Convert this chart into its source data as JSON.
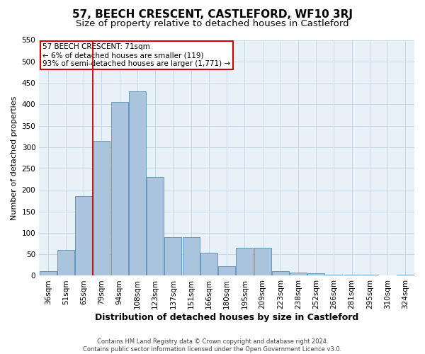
{
  "title": "57, BEECH CRESCENT, CASTLEFORD, WF10 3RJ",
  "subtitle": "Size of property relative to detached houses in Castleford",
  "xlabel": "Distribution of detached houses by size in Castleford",
  "ylabel": "Number of detached properties",
  "categories": [
    "36sqm",
    "51sqm",
    "65sqm",
    "79sqm",
    "94sqm",
    "108sqm",
    "123sqm",
    "137sqm",
    "151sqm",
    "166sqm",
    "180sqm",
    "195sqm",
    "209sqm",
    "223sqm",
    "238sqm",
    "252sqm",
    "266sqm",
    "281sqm",
    "295sqm",
    "310sqm",
    "324sqm"
  ],
  "values": [
    10,
    60,
    185,
    315,
    405,
    430,
    230,
    90,
    90,
    53,
    22,
    65,
    65,
    10,
    8,
    5,
    3,
    2,
    2,
    1,
    2
  ],
  "bar_color": "#aac4de",
  "bar_edge_color": "#6699bb",
  "highlight_bar_index": 2,
  "highlight_line_color": "#cc0000",
  "annotation_text": "57 BEECH CRESCENT: 71sqm\n← 6% of detached houses are smaller (119)\n93% of semi-detached houses are larger (1,771) →",
  "annotation_box_color": "#ffffff",
  "annotation_box_edge_color": "#cc0000",
  "ylim": [
    0,
    550
  ],
  "yticks": [
    0,
    50,
    100,
    150,
    200,
    250,
    300,
    350,
    400,
    450,
    500,
    550
  ],
  "grid_color": "#c8d8e8",
  "footer1": "Contains HM Land Registry data © Crown copyright and database right 2024.",
  "footer2": "Contains public sector information licensed under the Open Government Licence v3.0.",
  "bg_color": "#e8f0f8",
  "title_fontsize": 11,
  "subtitle_fontsize": 9.5,
  "tick_fontsize": 7.5,
  "ylabel_fontsize": 8,
  "xlabel_fontsize": 9,
  "annotation_fontsize": 7.5,
  "footer_fontsize": 6
}
